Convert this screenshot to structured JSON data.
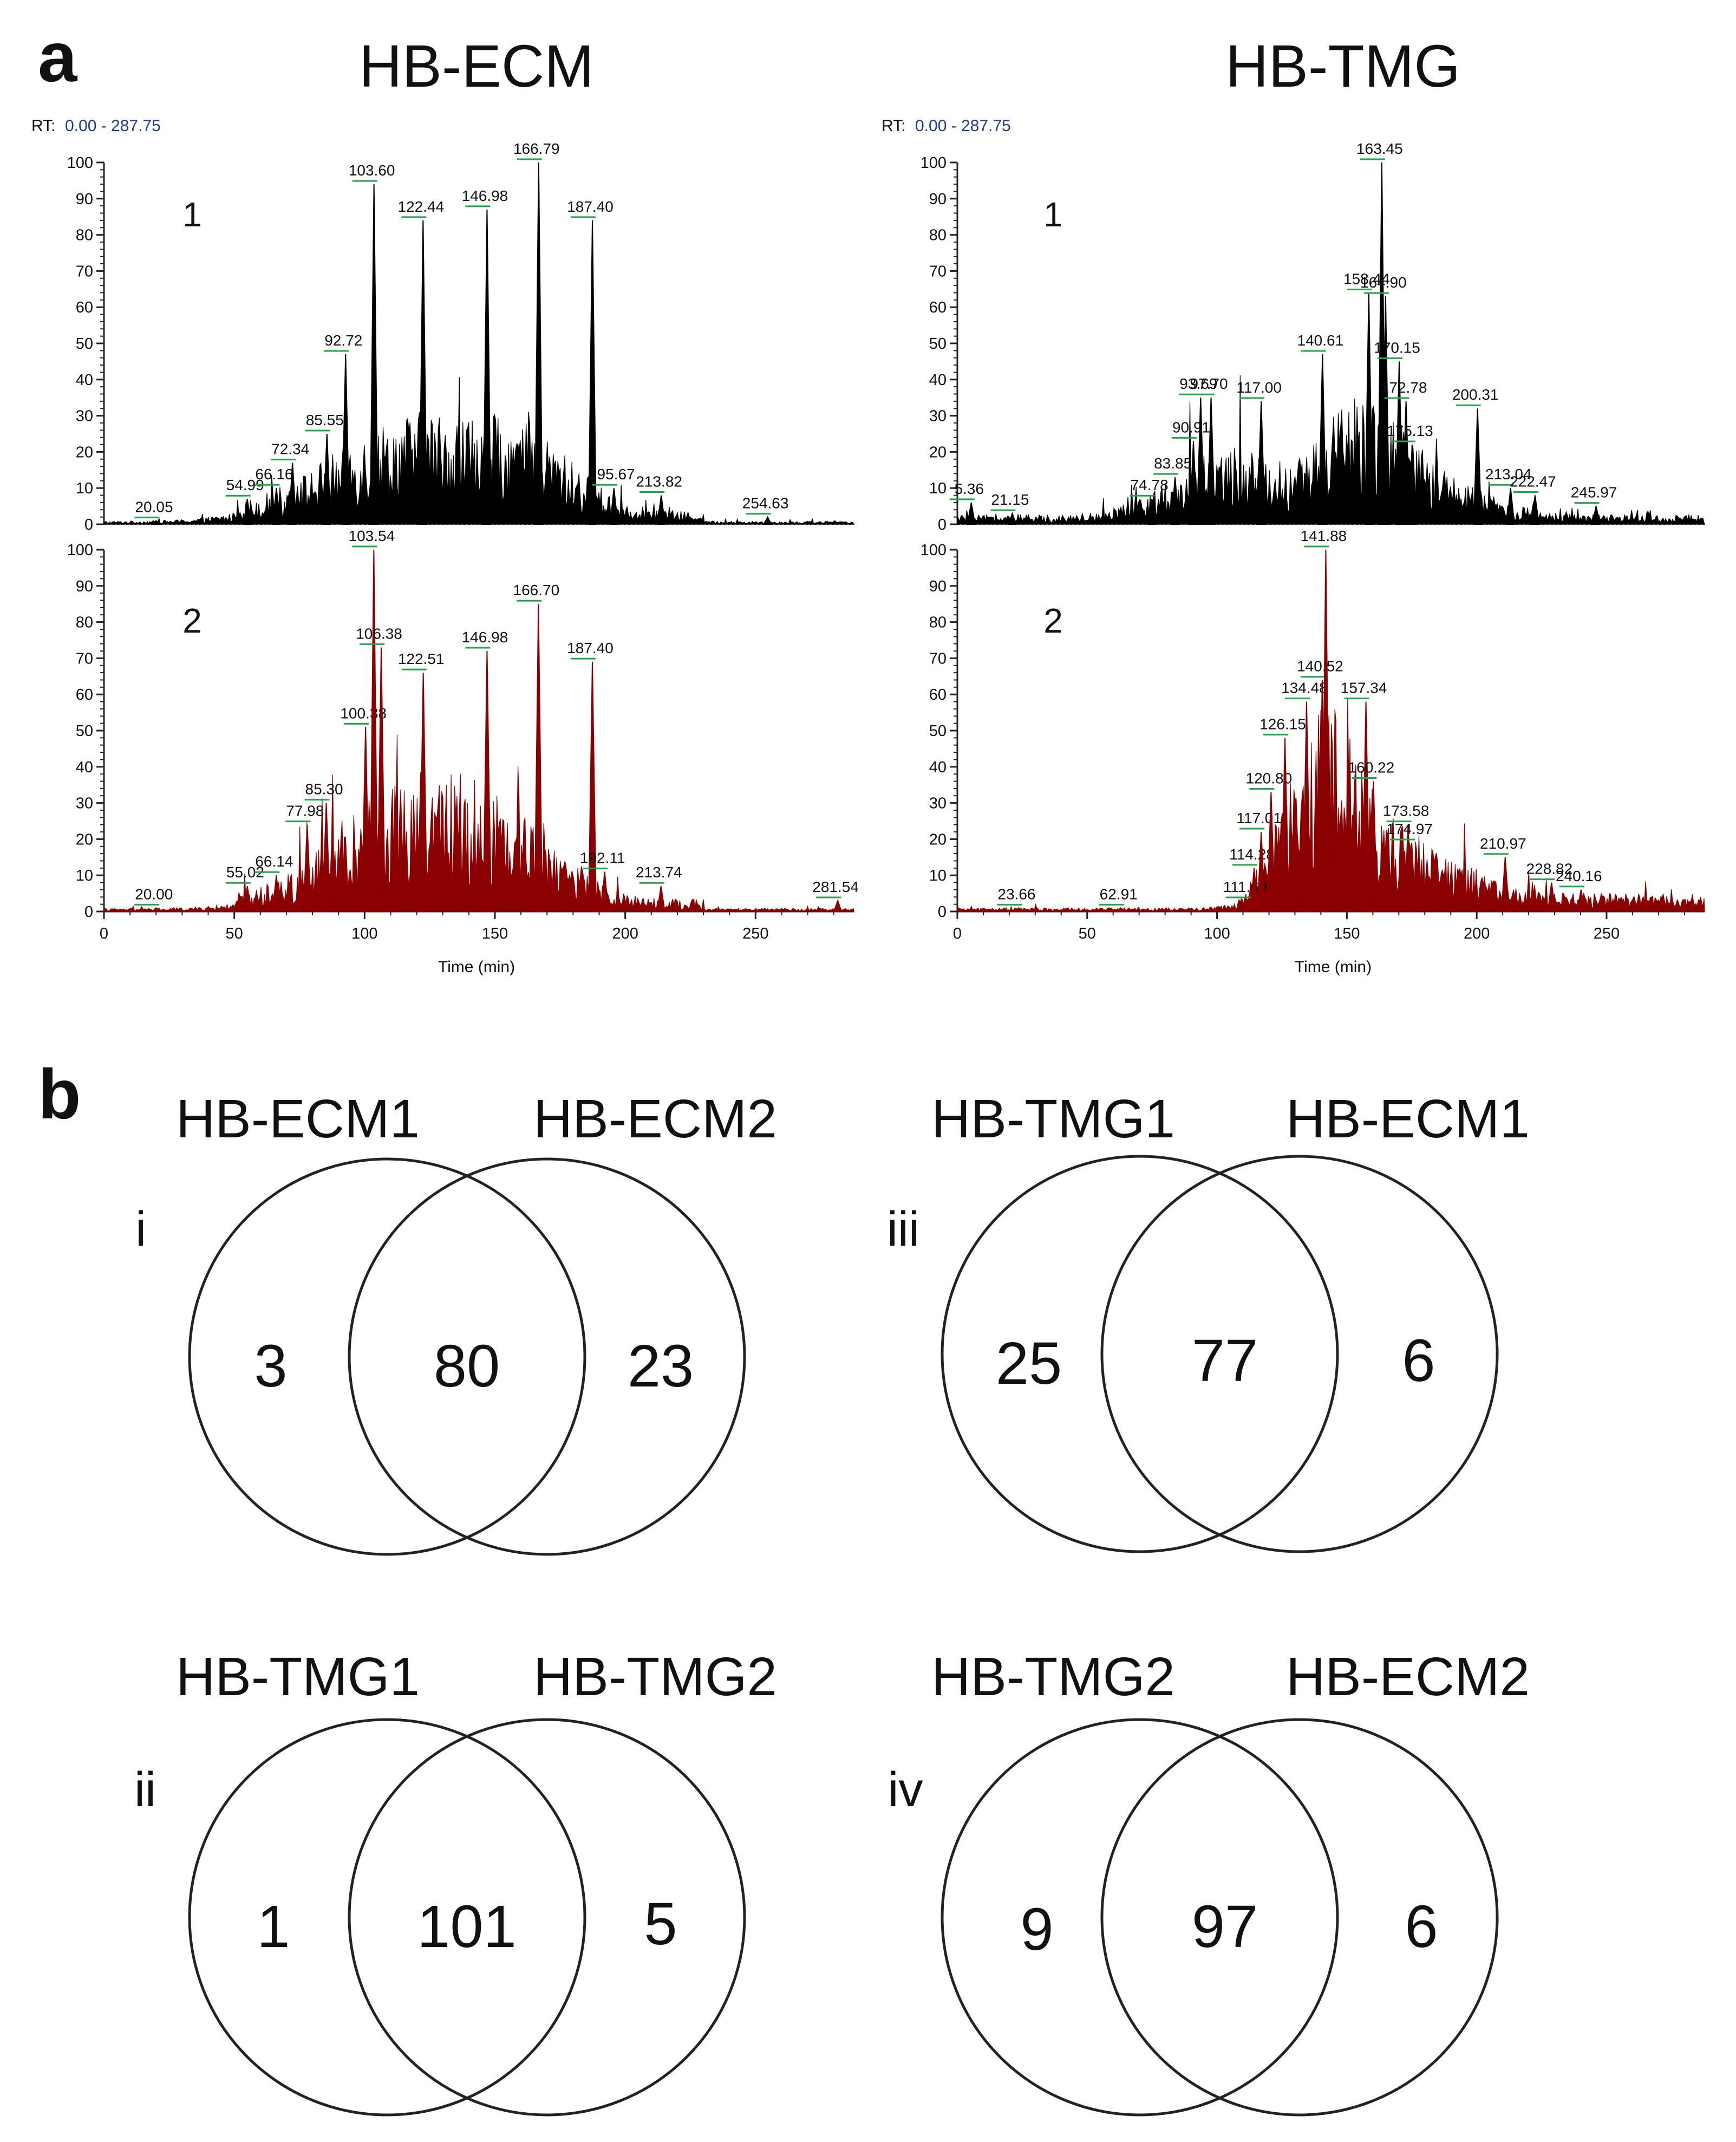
{
  "panel_a": {
    "letter": "a",
    "rt_prefix": "RT:",
    "rt_range": "0.00 - 287.75",
    "xlabel": "Time (min)",
    "columns": [
      {
        "title": "HB-ECM"
      },
      {
        "title": "HB-TMG"
      }
    ]
  },
  "panel_b": {
    "letter": "b",
    "venns": [
      {
        "roman": "i",
        "left_label": "HB-ECM1",
        "right_label": "HB-ECM2",
        "left_only": "3",
        "overlap": "80",
        "right_only": "23"
      },
      {
        "roman": "iii",
        "left_label": "HB-TMG1",
        "right_label": "HB-ECM1",
        "left_only": "25",
        "overlap": "77",
        "right_only": "6"
      },
      {
        "roman": "ii",
        "left_label": "HB-TMG1",
        "right_label": "HB-TMG2",
        "left_only": "1",
        "overlap": "101",
        "right_only": "5"
      },
      {
        "roman": "iv",
        "left_label": "HB-TMG2",
        "right_label": "HB-ECM2",
        "left_only": "9",
        "overlap": "97",
        "right_only": "6"
      }
    ]
  },
  "colors": {
    "trace_replicate_1": "#000000",
    "trace_replicate_2": "#8b0000",
    "rt_range_text": "#1f3a93",
    "peak_tick": "#22a64a",
    "axis": "#222222"
  },
  "chart_data": [
    {
      "type": "line",
      "title": "HB-ECM",
      "replicate": "1",
      "xlabel": "Time (min)",
      "ylabel": "",
      "xlim": [
        0,
        287.75
      ],
      "ylim": [
        0,
        100
      ],
      "x_ticks": [
        0,
        50,
        100,
        150,
        200,
        250
      ],
      "y_ticks": [
        0,
        10,
        20,
        30,
        40,
        50,
        60,
        70,
        80,
        90,
        100
      ],
      "peaks": [
        {
          "x": 20.05,
          "y": 1
        },
        {
          "x": 54.99,
          "y": 7
        },
        {
          "x": 66.16,
          "y": 10
        },
        {
          "x": 72.34,
          "y": 17
        },
        {
          "x": 85.55,
          "y": 25
        },
        {
          "x": 92.72,
          "y": 47
        },
        {
          "x": 103.6,
          "y": 94
        },
        {
          "x": 122.44,
          "y": 84
        },
        {
          "x": 146.98,
          "y": 87
        },
        {
          "x": 166.79,
          "y": 100
        },
        {
          "x": 187.4,
          "y": 84
        },
        {
          "x": 195.67,
          "y": 10
        },
        {
          "x": 213.82,
          "y": 8
        },
        {
          "x": 254.63,
          "y": 2
        }
      ],
      "peak_labels": [
        "20.05",
        "54.99",
        "66.16",
        "72.34",
        "85.55",
        "92.72",
        "103.60",
        "122.44",
        "146.98",
        "166.79",
        "187.40",
        "195.67",
        "213.82",
        "254.63"
      ]
    },
    {
      "type": "line",
      "title": "HB-ECM",
      "replicate": "2",
      "xlabel": "Time (min)",
      "ylabel": "",
      "xlim": [
        0,
        287.75
      ],
      "ylim": [
        0,
        100
      ],
      "x_ticks": [
        0,
        50,
        100,
        150,
        200,
        250
      ],
      "y_ticks": [
        0,
        10,
        20,
        30,
        40,
        50,
        60,
        70,
        80,
        90,
        100
      ],
      "peaks": [
        {
          "x": 20.0,
          "y": 1
        },
        {
          "x": 55.02,
          "y": 7
        },
        {
          "x": 66.14,
          "y": 10
        },
        {
          "x": 77.98,
          "y": 24
        },
        {
          "x": 85.3,
          "y": 30
        },
        {
          "x": 100.38,
          "y": 51
        },
        {
          "x": 103.54,
          "y": 100
        },
        {
          "x": 106.38,
          "y": 73
        },
        {
          "x": 122.51,
          "y": 66
        },
        {
          "x": 146.98,
          "y": 72
        },
        {
          "x": 166.7,
          "y": 85
        },
        {
          "x": 187.4,
          "y": 69
        },
        {
          "x": 192.11,
          "y": 11
        },
        {
          "x": 213.74,
          "y": 7
        },
        {
          "x": 281.54,
          "y": 3
        }
      ],
      "peak_labels": [
        "20.00",
        "55.02",
        "66.14",
        "77.98",
        "85.30",
        "100.38",
        "103.54",
        "106.38",
        "122.51",
        "146.98",
        "166.70",
        "187.40",
        "192.11",
        "213.74",
        "281.54"
      ]
    },
    {
      "type": "line",
      "title": "HB-TMG",
      "replicate": "1",
      "xlabel": "Time (min)",
      "ylabel": "",
      "xlim": [
        0,
        287.75
      ],
      "ylim": [
        0,
        100
      ],
      "x_ticks": [
        0,
        50,
        100,
        150,
        200,
        250
      ],
      "y_ticks": [
        0,
        10,
        20,
        30,
        40,
        50,
        60,
        70,
        80,
        90,
        100
      ],
      "peaks": [
        {
          "x": 5.36,
          "y": 6
        },
        {
          "x": 21.15,
          "y": 3
        },
        {
          "x": 74.78,
          "y": 7
        },
        {
          "x": 83.85,
          "y": 13
        },
        {
          "x": 90.91,
          "y": 23
        },
        {
          "x": 93.69,
          "y": 35
        },
        {
          "x": 97.7,
          "y": 35
        },
        {
          "x": 117.0,
          "y": 34
        },
        {
          "x": 140.61,
          "y": 47
        },
        {
          "x": 158.44,
          "y": 64
        },
        {
          "x": 163.45,
          "y": 100
        },
        {
          "x": 164.9,
          "y": 63
        },
        {
          "x": 170.15,
          "y": 45
        },
        {
          "x": 172.78,
          "y": 34
        },
        {
          "x": 175.13,
          "y": 22
        },
        {
          "x": 200.31,
          "y": 32
        },
        {
          "x": 213.04,
          "y": 10
        },
        {
          "x": 222.47,
          "y": 8
        },
        {
          "x": 245.97,
          "y": 5
        }
      ],
      "peak_labels": [
        "5.36",
        "21.15",
        "74.78",
        "83.85",
        "90.91",
        "93.69",
        "97.70",
        "117.00",
        "140.61",
        "158.44",
        "163.45",
        "164.90",
        "170.15",
        "172.78",
        "175.13",
        "200.31",
        "213.04",
        "222.47",
        "245.97"
      ]
    },
    {
      "type": "line",
      "title": "HB-TMG",
      "replicate": "2",
      "xlabel": "Time (min)",
      "ylabel": "",
      "xlim": [
        0,
        287.75
      ],
      "ylim": [
        0,
        100
      ],
      "x_ticks": [
        0,
        50,
        100,
        150,
        200,
        250
      ],
      "y_ticks": [
        0,
        10,
        20,
        30,
        40,
        50,
        60,
        70,
        80,
        90,
        100
      ],
      "peaks": [
        {
          "x": 23.66,
          "y": 1
        },
        {
          "x": 62.91,
          "y": 1
        },
        {
          "x": 111.69,
          "y": 3
        },
        {
          "x": 114.28,
          "y": 12
        },
        {
          "x": 117.01,
          "y": 22
        },
        {
          "x": 120.8,
          "y": 33
        },
        {
          "x": 126.15,
          "y": 48
        },
        {
          "x": 134.48,
          "y": 58
        },
        {
          "x": 140.52,
          "y": 64
        },
        {
          "x": 141.88,
          "y": 100
        },
        {
          "x": 157.34,
          "y": 58
        },
        {
          "x": 160.22,
          "y": 36
        },
        {
          "x": 173.58,
          "y": 24
        },
        {
          "x": 174.97,
          "y": 19
        },
        {
          "x": 210.97,
          "y": 15
        },
        {
          "x": 228.82,
          "y": 8
        },
        {
          "x": 240.16,
          "y": 6
        }
      ],
      "peak_labels": [
        "23.66",
        "62.91",
        "111.69",
        "114.28",
        "117.01",
        "120.80",
        "126.15",
        "134.48",
        "140.52",
        "141.88",
        "157.34",
        "160.22",
        "173.58",
        "174.97",
        "210.97",
        "228.82",
        "240.16"
      ]
    }
  ]
}
